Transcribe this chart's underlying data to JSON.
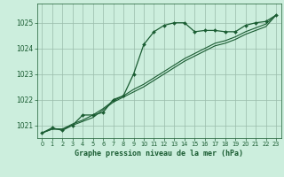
{
  "title": "Graphe pression niveau de la mer (hPa)",
  "bg_color": "#cceedd",
  "plot_bg_color": "#cceedd",
  "grid_color": "#99bbaa",
  "line_color": "#1a5c32",
  "xlabel_color": "#1a5c32",
  "xlim": [
    -0.5,
    23.5
  ],
  "ylim": [
    1020.5,
    1025.75
  ],
  "yticks": [
    1021,
    1022,
    1023,
    1024,
    1025
  ],
  "xticks": [
    0,
    1,
    2,
    3,
    4,
    5,
    6,
    7,
    8,
    9,
    10,
    11,
    12,
    13,
    14,
    15,
    16,
    17,
    18,
    19,
    20,
    21,
    22,
    23
  ],
  "series1": [
    1020.7,
    1020.9,
    1020.8,
    1021.0,
    1021.4,
    1021.4,
    1021.5,
    1022.0,
    1022.15,
    1023.0,
    1024.15,
    1024.65,
    1024.9,
    1025.0,
    1025.0,
    1024.65,
    1024.7,
    1024.7,
    1024.65,
    1024.65,
    1024.9,
    1025.0,
    1025.05,
    1025.3
  ],
  "series2": [
    1020.7,
    1020.85,
    1020.85,
    1021.0,
    1021.15,
    1021.3,
    1021.6,
    1021.9,
    1022.1,
    1022.3,
    1022.5,
    1022.75,
    1023.0,
    1023.25,
    1023.5,
    1023.7,
    1023.9,
    1024.1,
    1024.2,
    1024.35,
    1024.55,
    1024.7,
    1024.85,
    1025.3
  ],
  "series3": [
    1020.7,
    1020.85,
    1020.85,
    1021.05,
    1021.2,
    1021.4,
    1021.65,
    1021.95,
    1022.15,
    1022.4,
    1022.6,
    1022.85,
    1023.1,
    1023.35,
    1023.6,
    1023.8,
    1024.0,
    1024.2,
    1024.3,
    1024.45,
    1024.65,
    1024.8,
    1024.95,
    1025.3
  ]
}
